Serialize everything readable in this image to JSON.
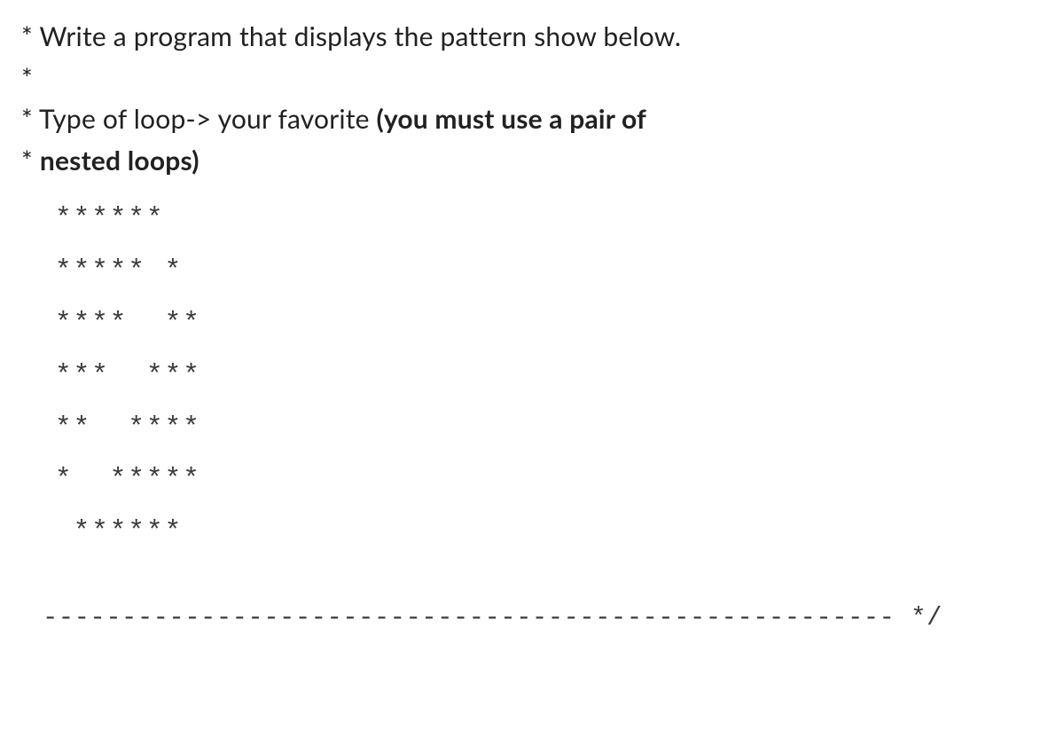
{
  "lines": {
    "l1_prefix": "* ",
    "l1_text": "Write a program that displays the pattern show below.",
    "l2": "*",
    "l3_prefix": "* ",
    "l3_text": "Type of loop-> your favorite ",
    "l3_bold": "(you must use a pair of",
    "l4_prefix": "* ",
    "l4_bold": "nested loops)"
  },
  "pattern": {
    "rows": [
      "******",
      "***** *",
      "****  **",
      "***  ***",
      "**  ****",
      "*  *****",
      " ******"
    ]
  },
  "divider": "------------------------------------------------------ */",
  "styling": {
    "body_bg": "#ffffff",
    "text_color": "#212121",
    "pattern_color": "#3a3a3a",
    "body_fontsize": 30,
    "pattern_fontsize": 31,
    "pattern_font": "Courier New",
    "body_font": "Lato"
  }
}
